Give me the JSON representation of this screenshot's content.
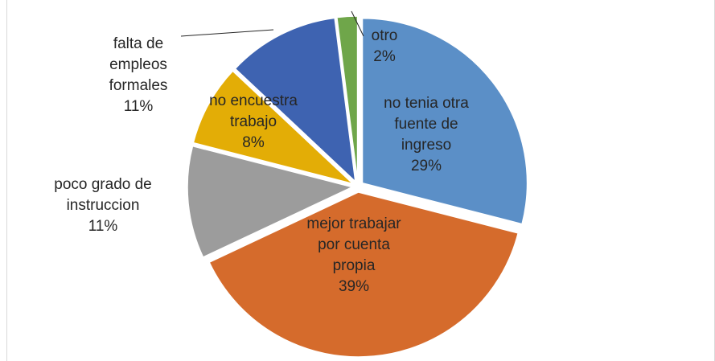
{
  "chart_data": {
    "type": "pie",
    "categories": [
      "no tenia otra fuente de ingreso",
      "mejor trabajar por cuenta propia",
      "poco grado de instruccion",
      "no encuestra trabajo",
      "falta de empleos formales",
      "otro"
    ],
    "values": [
      29,
      39,
      11,
      8,
      11,
      2
    ],
    "value_labels": [
      "29%",
      "39%",
      "11%",
      "8%",
      "11%",
      "2%"
    ],
    "colors": [
      "#5b8fc7",
      "#d56b2c",
      "#9c9c9c",
      "#e3ad06",
      "#3e63b1",
      "#6fa64a"
    ]
  }
}
